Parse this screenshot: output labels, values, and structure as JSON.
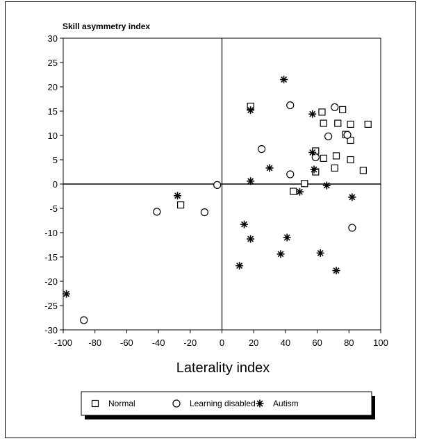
{
  "chart_data": {
    "type": "scatter",
    "title": "",
    "ylabel": "Skill asymmetry index",
    "xlabel": "Laterality index",
    "xlim": [
      -100,
      100
    ],
    "ylim": [
      -30,
      30
    ],
    "xticks": [
      -100,
      -80,
      -60,
      -40,
      -20,
      0,
      20,
      40,
      60,
      80,
      100
    ],
    "yticks": [
      30,
      25,
      20,
      15,
      10,
      5,
      0,
      -5,
      -10,
      -15,
      -20,
      -25,
      -30
    ],
    "grid": false,
    "reference_lines": {
      "x": 0,
      "y": 0
    },
    "legend_position": "bottom",
    "series": [
      {
        "name": "Normal",
        "marker": "square",
        "points": [
          {
            "x": 18,
            "y": 16
          },
          {
            "x": 63,
            "y": 14.8
          },
          {
            "x": 76,
            "y": 15.3
          },
          {
            "x": 64,
            "y": 12.5
          },
          {
            "x": 73,
            "y": 12.5
          },
          {
            "x": 81,
            "y": 12.3
          },
          {
            "x": 92,
            "y": 12.3
          },
          {
            "x": 78,
            "y": 10.2
          },
          {
            "x": 81,
            "y": 9.0
          },
          {
            "x": 59,
            "y": 6.8
          },
          {
            "x": 72,
            "y": 5.8
          },
          {
            "x": 64,
            "y": 5.3
          },
          {
            "x": 81,
            "y": 5.0
          },
          {
            "x": 71,
            "y": 3.3
          },
          {
            "x": 89,
            "y": 2.8
          },
          {
            "x": 59,
            "y": 2.5
          },
          {
            "x": 52,
            "y": 0.1
          },
          {
            "x": 45,
            "y": -1.5
          },
          {
            "x": -26,
            "y": -4.3
          }
        ]
      },
      {
        "name": "Learning disabled",
        "marker": "circle",
        "points": [
          {
            "x": 43,
            "y": 16.2
          },
          {
            "x": 71,
            "y": 15.8
          },
          {
            "x": 67,
            "y": 9.8
          },
          {
            "x": 79,
            "y": 10.1
          },
          {
            "x": 59,
            "y": 5.5
          },
          {
            "x": 25,
            "y": 7.2
          },
          {
            "x": 43,
            "y": 2.0
          },
          {
            "x": -3,
            "y": -0.2
          },
          {
            "x": -41,
            "y": -5.7
          },
          {
            "x": -11,
            "y": -5.8
          },
          {
            "x": 82,
            "y": -9.0
          },
          {
            "x": -87,
            "y": -28
          }
        ]
      },
      {
        "name": "Autism",
        "marker": "asterisk",
        "points": [
          {
            "x": 39,
            "y": 21.5
          },
          {
            "x": 18,
            "y": 15.2
          },
          {
            "x": 57,
            "y": 14.4
          },
          {
            "x": 57,
            "y": 6.5
          },
          {
            "x": 30,
            "y": 3.3
          },
          {
            "x": 58,
            "y": 3.0
          },
          {
            "x": 18,
            "y": 0.6
          },
          {
            "x": 66,
            "y": -0.3
          },
          {
            "x": 49,
            "y": -1.6
          },
          {
            "x": -28,
            "y": -2.4
          },
          {
            "x": 82,
            "y": -2.7
          },
          {
            "x": 14,
            "y": -8.3
          },
          {
            "x": 18,
            "y": -11.3
          },
          {
            "x": 41,
            "y": -11.0
          },
          {
            "x": 11,
            "y": -16.8
          },
          {
            "x": 37,
            "y": -14.4
          },
          {
            "x": 62,
            "y": -14.2
          },
          {
            "x": 72,
            "y": -17.8
          },
          {
            "x": -98,
            "y": -22.6
          }
        ]
      }
    ]
  },
  "legend": {
    "items": [
      {
        "label": "Normal",
        "marker": "square"
      },
      {
        "label": "Learning disabled",
        "marker": "circle"
      },
      {
        "label": "Autism",
        "marker": "asterisk"
      }
    ]
  },
  "colors": {
    "ink": "#000000",
    "background": "#ffffff"
  }
}
